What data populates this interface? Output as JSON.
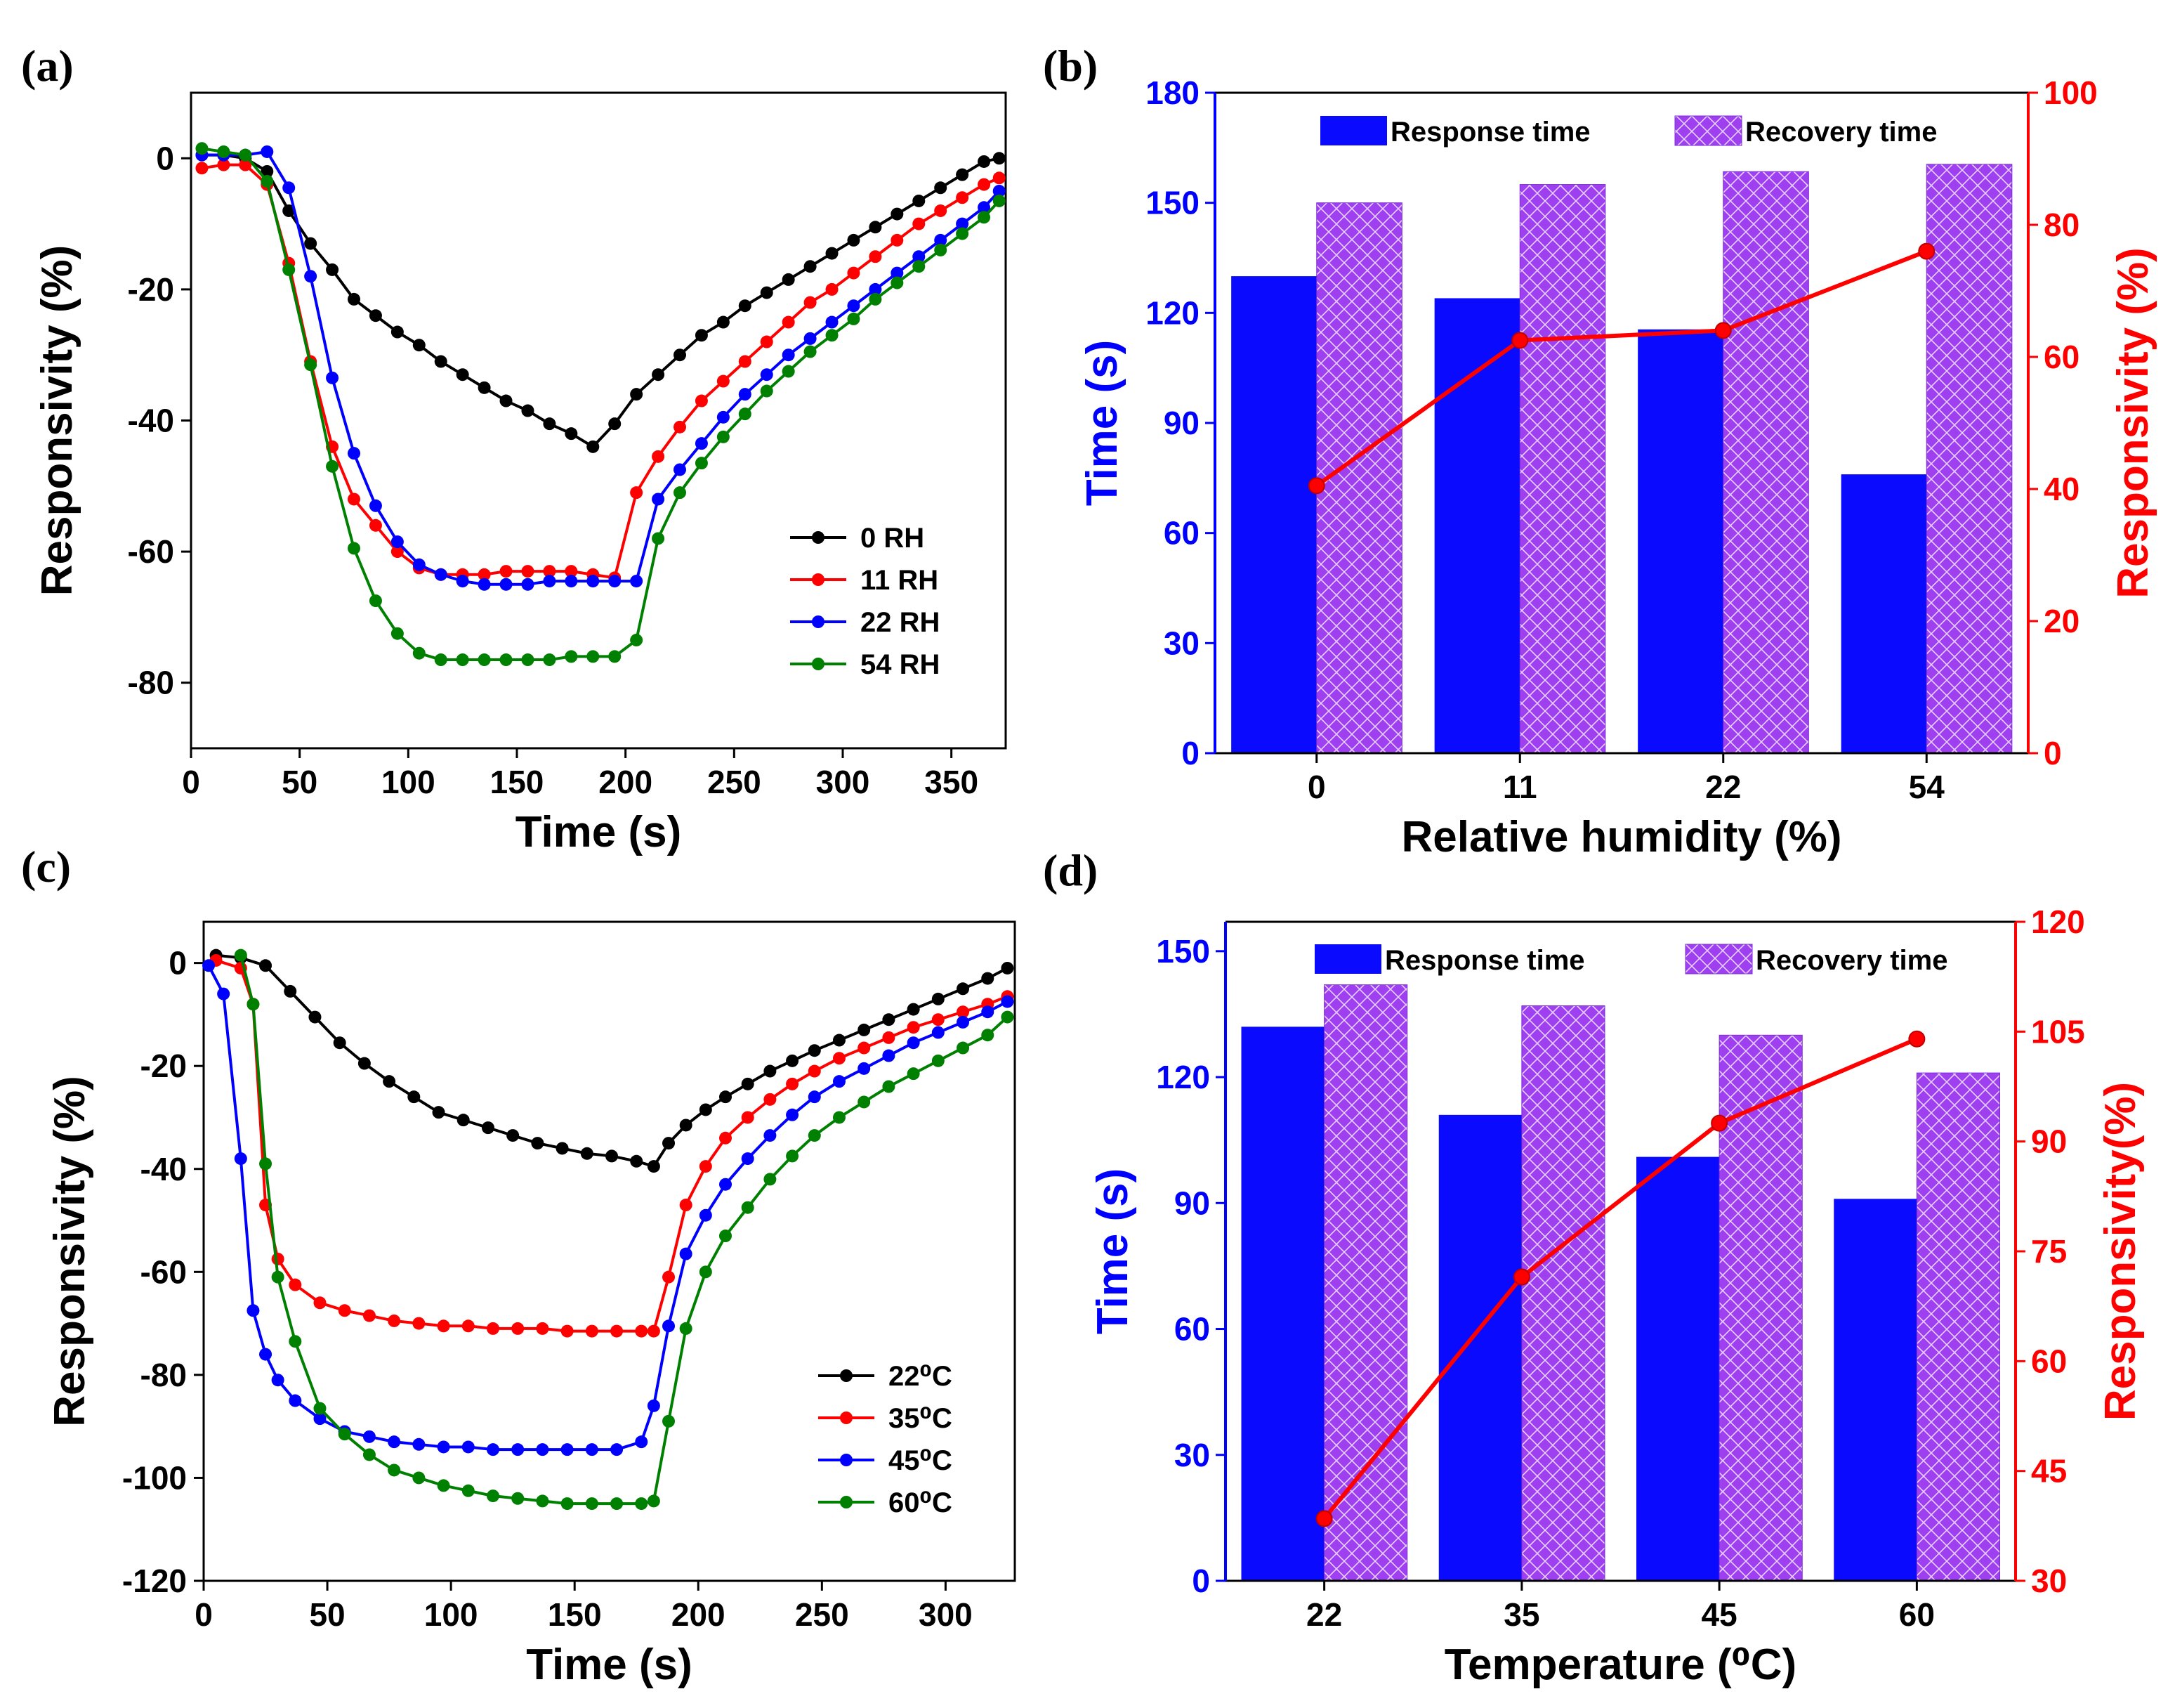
{
  "figure": {
    "panel_labels": [
      "(a)",
      "(b)",
      "(c)",
      "(d)"
    ]
  },
  "colors": {
    "black": "#000000",
    "red": "#ff0000",
    "blue": "#0000ff",
    "green": "#008000",
    "bar_blue": "#0a0aff",
    "bar_purple": "#9e3ff0",
    "right_axis": "#ff0000",
    "left_axis_bar": "#0000ff"
  },
  "chart_data": [
    {
      "id": "a",
      "type": "line",
      "title": "",
      "xlabel": "Time (s)",
      "ylabel": "Responsivity (%)",
      "xlim": [
        0,
        375
      ],
      "ylim": [
        -90,
        10
      ],
      "xticks": [
        0,
        50,
        100,
        150,
        200,
        250,
        300,
        350
      ],
      "yticks": [
        0,
        -20,
        -40,
        -60,
        -80
      ],
      "legend_position": "bottom-right",
      "series": [
        {
          "name": "0 RH",
          "color": "#000000",
          "x": [
            5,
            15,
            25,
            35,
            45,
            55,
            65,
            75,
            85,
            95,
            105,
            115,
            125,
            135,
            145,
            155,
            165,
            175,
            185,
            195,
            205,
            215,
            225,
            235,
            245,
            255,
            265,
            275,
            285,
            295,
            305,
            315,
            325,
            335,
            345,
            355,
            365,
            372
          ],
          "y": [
            0.5,
            0.5,
            0,
            -2,
            -8,
            -13,
            -17,
            -21.5,
            -24,
            -26.5,
            -28.5,
            -31,
            -33,
            -35,
            -37,
            -38.5,
            -40.5,
            -42,
            -44,
            -40.5,
            -36,
            -33,
            -30,
            -27,
            -25,
            -22.5,
            -20.5,
            -18.5,
            -16.5,
            -14.5,
            -12.5,
            -10.5,
            -8.5,
            -6.5,
            -4.5,
            -2.5,
            -0.5,
            0
          ]
        },
        {
          "name": "11 RH",
          "color": "#ff0000",
          "x": [
            5,
            15,
            25,
            35,
            45,
            55,
            65,
            75,
            85,
            95,
            105,
            115,
            125,
            135,
            145,
            155,
            165,
            175,
            185,
            195,
            205,
            215,
            225,
            235,
            245,
            255,
            265,
            275,
            285,
            295,
            305,
            315,
            325,
            335,
            345,
            355,
            365,
            372
          ],
          "y": [
            -1.5,
            -1,
            -1,
            -4,
            -16,
            -31,
            -44,
            -52,
            -56,
            -60,
            -62.5,
            -63.5,
            -63.5,
            -63.5,
            -63,
            -63,
            -63,
            -63,
            -63.5,
            -64,
            -51,
            -45.5,
            -41,
            -37,
            -34,
            -31,
            -28,
            -25,
            -22,
            -20,
            -17.5,
            -15,
            -12.5,
            -10,
            -8,
            -6,
            -4,
            -3
          ]
        },
        {
          "name": "22 RH",
          "color": "#0000ff",
          "x": [
            5,
            15,
            25,
            35,
            45,
            55,
            65,
            75,
            85,
            95,
            105,
            115,
            125,
            135,
            145,
            155,
            165,
            175,
            185,
            195,
            205,
            215,
            225,
            235,
            245,
            255,
            265,
            275,
            285,
            295,
            305,
            315,
            325,
            335,
            345,
            355,
            365,
            372
          ],
          "y": [
            0.5,
            0.5,
            0.5,
            1,
            -4.5,
            -18,
            -33.5,
            -45,
            -53,
            -58.5,
            -62,
            -63.5,
            -64.5,
            -65,
            -65,
            -65,
            -64.5,
            -64.5,
            -64.5,
            -64.5,
            -64.5,
            -52,
            -47.5,
            -43.5,
            -39.5,
            -36,
            -33,
            -30,
            -27.5,
            -25,
            -22.5,
            -20,
            -17.5,
            -15,
            -12.5,
            -10,
            -7.5,
            -5
          ]
        },
        {
          "name": "54 RH",
          "color": "#008000",
          "x": [
            5,
            15,
            25,
            35,
            45,
            55,
            65,
            75,
            85,
            95,
            105,
            115,
            125,
            135,
            145,
            155,
            165,
            175,
            185,
            195,
            205,
            215,
            225,
            235,
            245,
            255,
            265,
            275,
            285,
            295,
            305,
            315,
            325,
            335,
            345,
            355,
            365,
            372
          ],
          "y": [
            1.5,
            1,
            0.5,
            -3.5,
            -17,
            -31.5,
            -47,
            -59.5,
            -67.5,
            -72.5,
            -75.5,
            -76.5,
            -76.5,
            -76.5,
            -76.5,
            -76.5,
            -76.5,
            -76,
            -76,
            -76,
            -73.5,
            -58,
            -51,
            -46.5,
            -42.5,
            -39,
            -35.5,
            -32.5,
            -29.5,
            -27,
            -24.5,
            -21.5,
            -19,
            -16.5,
            -14,
            -11.5,
            -9,
            -6.5
          ]
        }
      ]
    },
    {
      "id": "b",
      "type": "bar",
      "title": "",
      "xlabel": "Relative humidity (%)",
      "ylabel": "Time (s)",
      "ylabel_right": "Responsivity (%)",
      "categories": [
        "0",
        "11",
        "22",
        "54"
      ],
      "ylim": [
        0,
        180
      ],
      "yticks": [
        0,
        30,
        60,
        90,
        120,
        150,
        180
      ],
      "ylim_right": [
        0,
        100
      ],
      "yticks_right": [
        0,
        20,
        40,
        60,
        80,
        100
      ],
      "legend_position": "top",
      "series": [
        {
          "name": "Response time",
          "axis": "left",
          "values": [
            130,
            124,
            115.5,
            76
          ]
        },
        {
          "name": "Recovery time",
          "axis": "left",
          "values": [
            150,
            155,
            158.5,
            160.5
          ]
        },
        {
          "name": "Responsivity",
          "axis": "right",
          "type": "line",
          "values": [
            40.5,
            62.5,
            64,
            76
          ]
        }
      ]
    },
    {
      "id": "c",
      "type": "line",
      "title": "",
      "xlabel": "Time (s)",
      "ylabel": "Responsivity (%)",
      "xlim": [
        0,
        328
      ],
      "ylim": [
        -120,
        8
      ],
      "xticks": [
        0,
        50,
        100,
        150,
        200,
        250,
        300
      ],
      "yticks": [
        0,
        -20,
        -40,
        -60,
        -80,
        -100,
        -120
      ],
      "legend_position": "bottom-right",
      "series": [
        {
          "name": "22⁰C",
          "color": "#000000",
          "x": [
            5,
            15,
            25,
            35,
            45,
            55,
            65,
            75,
            85,
            95,
            105,
            115,
            125,
            135,
            145,
            155,
            165,
            175,
            182,
            188,
            195,
            203,
            211,
            220,
            229,
            238,
            247,
            257,
            267,
            277,
            287,
            297,
            307,
            317,
            325
          ],
          "y": [
            1.5,
            1,
            -0.5,
            -5.5,
            -10.5,
            -15.5,
            -19.5,
            -23,
            -26,
            -29,
            -30.5,
            -32,
            -33.5,
            -35,
            -36,
            -37,
            -37.5,
            -38.5,
            -39.5,
            -35,
            -31.5,
            -28.5,
            -26,
            -23.5,
            -21,
            -19,
            -17,
            -15,
            -13,
            -11,
            -9,
            -7,
            -5,
            -3,
            -1
          ]
        },
        {
          "name": "35⁰C",
          "color": "#ff0000",
          "x": [
            5,
            15,
            20,
            25,
            30,
            37,
            47,
            57,
            67,
            77,
            87,
            97,
            107,
            117,
            127,
            137,
            147,
            157,
            167,
            177,
            182,
            188,
            195,
            203,
            211,
            220,
            229,
            238,
            247,
            257,
            267,
            277,
            287,
            297,
            307,
            317,
            325
          ],
          "y": [
            0.5,
            -1,
            -8,
            -47,
            -57.5,
            -62.5,
            -66,
            -67.5,
            -68.5,
            -69.5,
            -70,
            -70.5,
            -70.5,
            -71,
            -71,
            -71,
            -71.5,
            -71.5,
            -71.5,
            -71.5,
            -71.5,
            -61,
            -47,
            -39.5,
            -34,
            -30,
            -26.5,
            -23.5,
            -21,
            -18.5,
            -16.5,
            -14.5,
            -12.5,
            -11,
            -9.5,
            -8,
            -6.5
          ]
        },
        {
          "name": "45⁰C",
          "color": "#0000ff",
          "x": [
            2,
            8,
            15,
            20,
            25,
            30,
            37,
            47,
            57,
            67,
            77,
            87,
            97,
            107,
            117,
            127,
            137,
            147,
            157,
            167,
            177,
            182,
            188,
            195,
            203,
            211,
            220,
            229,
            238,
            247,
            257,
            267,
            277,
            287,
            297,
            307,
            317,
            325
          ],
          "y": [
            -0.5,
            -6,
            -38,
            -67.5,
            -76,
            -81,
            -85,
            -88.5,
            -91,
            -92,
            -93,
            -93.5,
            -94,
            -94,
            -94.5,
            -94.5,
            -94.5,
            -94.5,
            -94.5,
            -94.5,
            -93,
            -86,
            -70.5,
            -56.5,
            -49,
            -43,
            -38,
            -33.5,
            -29.5,
            -26,
            -23,
            -20.5,
            -18,
            -15.5,
            -13.5,
            -11.5,
            -9.5,
            -7.5
          ]
        },
        {
          "name": "60⁰C",
          "color": "#008000",
          "x": [
            15,
            20,
            25,
            30,
            37,
            47,
            57,
            67,
            77,
            87,
            97,
            107,
            117,
            127,
            137,
            147,
            157,
            167,
            177,
            182,
            188,
            195,
            203,
            211,
            220,
            229,
            238,
            247,
            257,
            267,
            277,
            287,
            297,
            307,
            317,
            325
          ],
          "y": [
            1.5,
            -8,
            -39,
            -61,
            -73.5,
            -86.5,
            -91.5,
            -95.5,
            -98.5,
            -100,
            -101.5,
            -102.5,
            -103.5,
            -104,
            -104.5,
            -105,
            -105,
            -105,
            -105,
            -104.5,
            -89,
            -71,
            -60,
            -53,
            -47.5,
            -42,
            -37.5,
            -33.5,
            -30,
            -27,
            -24,
            -21.5,
            -19,
            -16.5,
            -14,
            -10.5
          ]
        }
      ]
    },
    {
      "id": "d",
      "type": "bar",
      "title": "",
      "xlabel": "Temperature (⁰C)",
      "ylabel": "Time (s)",
      "ylabel_right": "Responsivity(%)",
      "categories": [
        "22",
        "35",
        "45",
        "60"
      ],
      "ylim": [
        0,
        157
      ],
      "yticks": [
        0,
        30,
        60,
        90,
        120,
        150
      ],
      "ylim_right": [
        30,
        120
      ],
      "yticks_right": [
        30,
        45,
        60,
        75,
        90,
        105,
        120
      ],
      "legend_position": "top",
      "series": [
        {
          "name": "Response time",
          "axis": "left",
          "values": [
            132,
            111,
            101,
            91
          ]
        },
        {
          "name": "Recovery time",
          "axis": "left",
          "values": [
            142,
            137,
            130,
            121
          ]
        },
        {
          "name": "Responsivity",
          "axis": "right",
          "type": "line",
          "values": [
            38.5,
            71.5,
            92.5,
            104
          ]
        }
      ]
    }
  ]
}
